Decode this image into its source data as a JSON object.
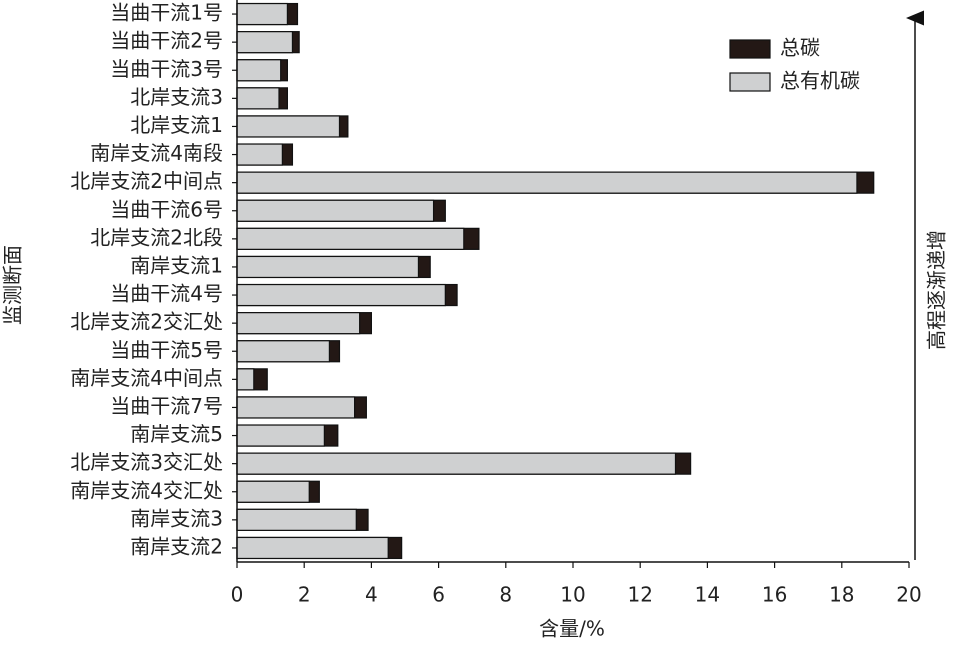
{
  "chart_data": {
    "type": "bar",
    "orientation": "horizontal",
    "categories": [
      "当曲干流1号",
      "当曲干流2号",
      "当曲干流3号",
      "北岸支流3",
      "北岸支流1",
      "南岸支流4南段",
      "北岸支流2中间点",
      "当曲干流6号",
      "北岸支流2北段",
      "南岸支流1",
      "当曲干流4号",
      "北岸支流2交汇处",
      "当曲干流5号",
      "南岸支流4中间点",
      "当曲干流7号",
      "南岸支流5",
      "北岸支流3交汇处",
      "南岸支流4交汇处",
      "南岸支流3",
      "南岸支流2"
    ],
    "series": [
      {
        "name": "总碳",
        "color": "#231815",
        "values": [
          1.8,
          1.85,
          1.5,
          1.5,
          3.3,
          1.65,
          18.95,
          6.2,
          7.2,
          5.75,
          6.55,
          4.0,
          3.05,
          0.9,
          3.85,
          3.0,
          13.5,
          2.45,
          3.9,
          4.9
        ]
      },
      {
        "name": "总有机碳",
        "color": "#cfd0d1",
        "values": [
          1.5,
          1.65,
          1.3,
          1.25,
          3.05,
          1.35,
          18.45,
          5.85,
          6.75,
          5.4,
          6.2,
          3.65,
          2.75,
          0.5,
          3.5,
          2.6,
          13.05,
          2.15,
          3.55,
          4.5
        ]
      }
    ],
    "xlim": [
      0,
      20
    ],
    "xticks": [
      0,
      2,
      4,
      6,
      8,
      10,
      12,
      14,
      16,
      18,
      20
    ],
    "x_label": "含量/%",
    "y_label": "监测断面",
    "annotation": "高程逐渐递增",
    "legend": "upper right"
  }
}
